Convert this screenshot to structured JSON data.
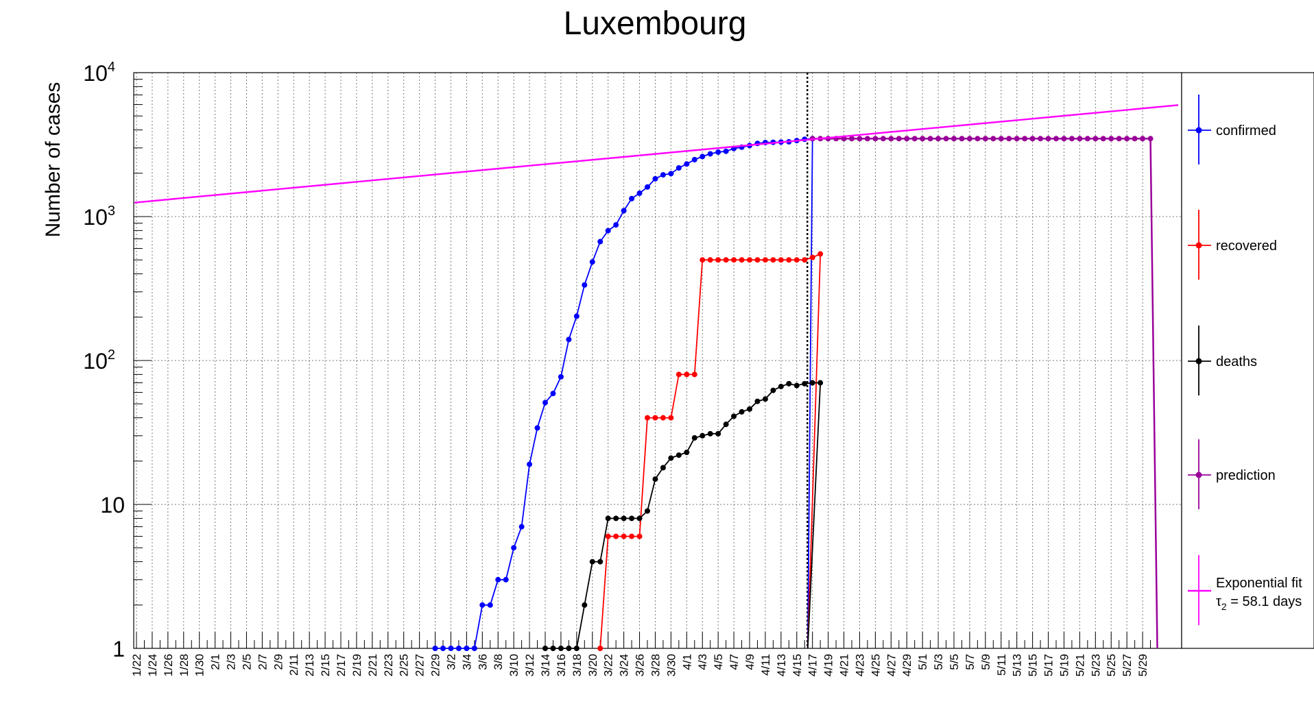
{
  "chart_data": {
    "type": "line",
    "title": "Luxembourg",
    "ylabel": "Number of cases",
    "xlabel": "",
    "yscale": "log",
    "ylim": [
      1,
      10000
    ],
    "grid": true,
    "legend_position": "right",
    "y_tick_labels": [
      {
        "value": 1,
        "base": "1",
        "exp": ""
      },
      {
        "value": 10,
        "base": "10",
        "exp": ""
      },
      {
        "value": 100,
        "base": "10",
        "exp": "2"
      },
      {
        "value": 1000,
        "base": "10",
        "exp": "3"
      },
      {
        "value": 10000,
        "base": "10",
        "exp": "4"
      }
    ],
    "x_dates": {
      "first": "2020-01-22",
      "last": "2020-05-31",
      "label_every_days": 2,
      "tick_labels": [
        "1/22",
        "1/24",
        "1/26",
        "1/28",
        "1/30",
        "2/1",
        "2/3",
        "2/5",
        "2/7",
        "2/9",
        "2/11",
        "2/13",
        "2/15",
        "2/17",
        "2/19",
        "2/21",
        "2/23",
        "2/25",
        "2/27",
        "2/29",
        "3/2",
        "3/4",
        "3/6",
        "3/8",
        "3/10",
        "3/12",
        "3/14",
        "3/16",
        "3/18",
        "3/20",
        "3/22",
        "3/24",
        "3/26",
        "3/28",
        "3/30",
        "4/1",
        "4/3",
        "4/5",
        "4/7",
        "4/9",
        "4/11",
        "4/13",
        "4/15",
        "4/17",
        "4/19",
        "4/21",
        "4/23",
        "4/25",
        "4/27",
        "4/29",
        "5/1",
        "5/3",
        "5/5",
        "5/7",
        "5/9",
        "5/11",
        "5/13",
        "5/15",
        "5/17",
        "5/19",
        "5/21",
        "5/23",
        "5/25",
        "5/27",
        "5/29"
      ]
    },
    "vertical_line_date": "2020-04-16",
    "series": [
      {
        "name": "confirmed",
        "color": "#0000ff",
        "start_date": "2020-02-29",
        "values": [
          1,
          1,
          1,
          1,
          1,
          1,
          2,
          2,
          3,
          3,
          5,
          7,
          19,
          34,
          51,
          59,
          77,
          140,
          203,
          335,
          484,
          670,
          798,
          875,
          1099,
          1333,
          1453,
          1605,
          1831,
          1950,
          1988,
          2178,
          2319,
          2487,
          2612,
          2729,
          2804,
          2843,
          2970,
          3034,
          3115,
          3223,
          3270,
          3281,
          3292,
          3307,
          3373,
          3444,
          3480
        ]
      },
      {
        "name": "recovered",
        "color": "#ff0000",
        "start_date": "2020-03-21",
        "values": [
          1,
          6,
          6,
          6,
          6,
          6,
          40,
          40,
          40,
          40,
          80,
          80,
          80,
          500,
          500,
          500,
          500,
          500,
          500,
          500,
          500,
          500,
          500,
          500,
          500,
          500,
          500,
          520,
          550
        ]
      },
      {
        "name": "deaths",
        "color": "#000000",
        "start_date": "2020-03-14",
        "values": [
          1,
          1,
          1,
          1,
          1,
          2,
          4,
          4,
          8,
          8,
          8,
          8,
          8,
          9,
          15,
          18,
          21,
          22,
          23,
          29,
          30,
          31,
          31,
          36,
          41,
          44,
          46,
          52,
          54,
          62,
          66,
          69,
          67,
          69,
          70,
          70
        ]
      },
      {
        "name": "prediction",
        "color": "#990099",
        "start_date": "2020-04-17",
        "end_date": "2020-05-30",
        "constant_value": 3480
      },
      {
        "name": "Exponential fit",
        "name_line2": "= 58.1 days",
        "tau_symbol": "τ",
        "tau_subscript": "2",
        "color": "#ff00ff",
        "start_date": "2020-01-22",
        "end_date": "2020-05-31",
        "start_value": 1250,
        "end_value": 5950
      }
    ]
  }
}
